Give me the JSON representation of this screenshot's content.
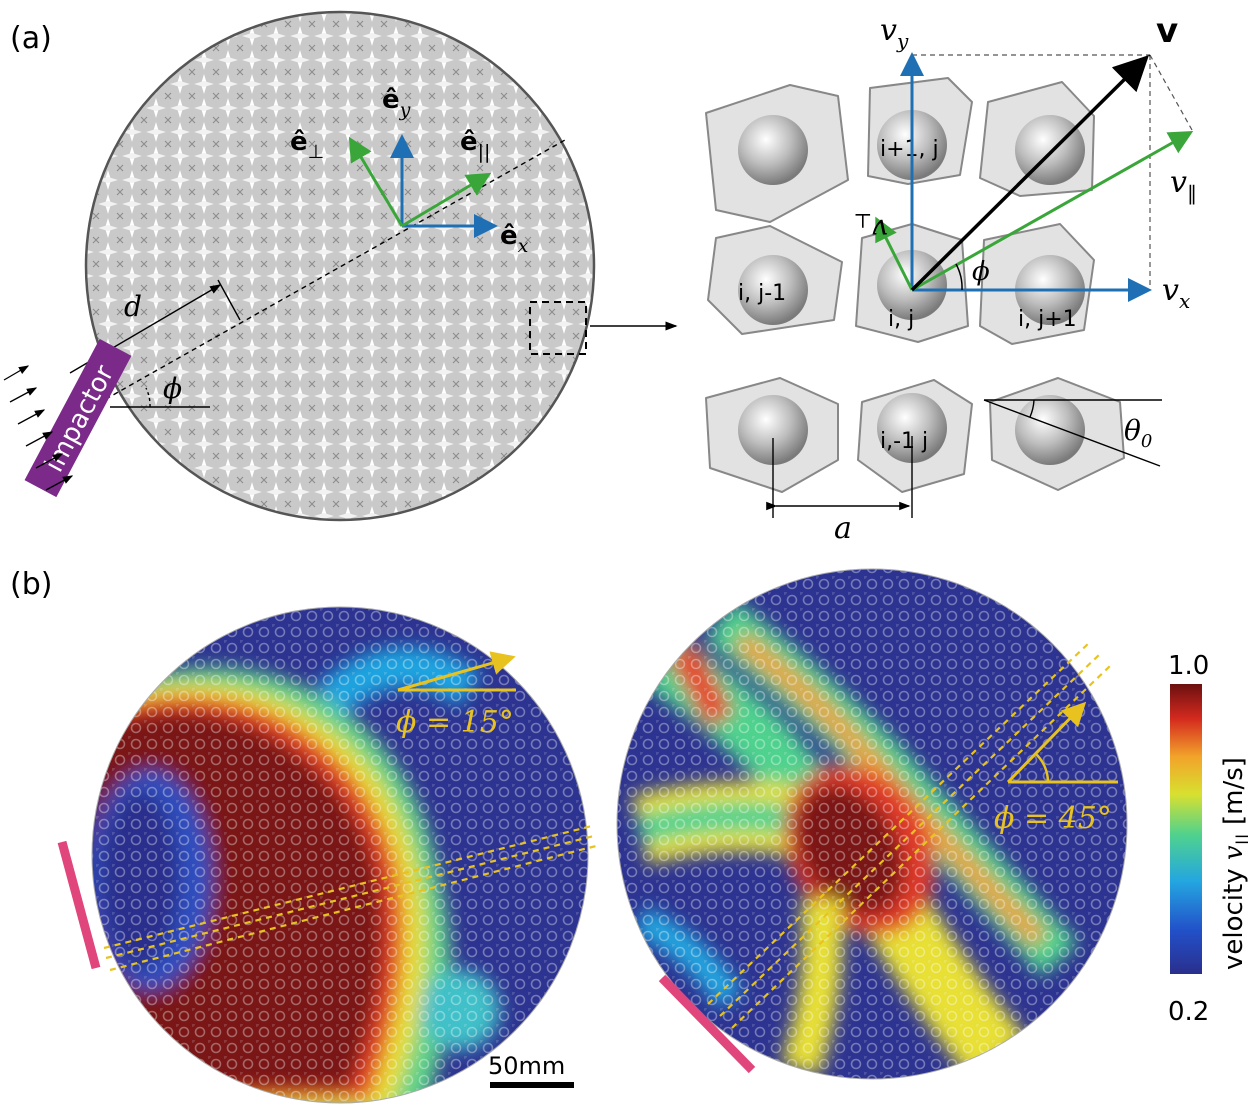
{
  "panel_a": {
    "label": "(a)",
    "impactor": "impactor",
    "distance": "d",
    "angle": "ϕ",
    "unit_x": "ê",
    "unit_x_sub": "x",
    "unit_y": "ê",
    "unit_y_sub": "y",
    "unit_perp": "ê",
    "unit_perp_sub": "⊥",
    "unit_par": "ê",
    "unit_par_sub": "||",
    "cells": {
      "top_center": "i+1, j",
      "mid_left": "i, j-1",
      "center": "i, j",
      "mid_right": "i, j+1",
      "bottom_center": "i,-1 j"
    },
    "v": "v",
    "vx": "v",
    "vx_sub": "x",
    "vy": "v",
    "vy_sub": "y",
    "vpar": "v",
    "vpar_sub": "‖",
    "vperp": "v",
    "vperp_sub": "⊥",
    "phi": "ϕ",
    "theta": "θ",
    "theta_sub": "0",
    "spacing": "a",
    "colors": {
      "blue": "#1f6fb5",
      "green": "#3aa63a",
      "impactor": "#7b2a8a"
    }
  },
  "panel_b": {
    "label": "(b)",
    "left_angle": "ϕ = 15°",
    "right_angle": "ϕ = 45°",
    "scale_bar": "50mm",
    "colorbar": {
      "max": "1.0",
      "min": "0.2",
      "title": "velocity",
      "symbol": "v",
      "symbol_sub": "||",
      "unit": "[m/s]"
    },
    "colors": {
      "annotation": "#e8c31f",
      "impactor": "#e0457b"
    }
  }
}
